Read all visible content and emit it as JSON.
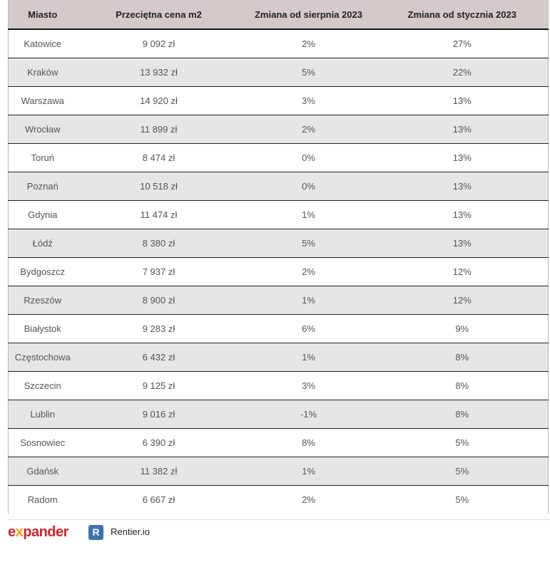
{
  "table": {
    "headers": [
      "Miasto",
      "Przeciętna cena m2",
      "Zmiana od sierpnia 2023",
      "Zmiana od stycznia 2023"
    ],
    "rows": [
      [
        "Katowice",
        "9 092 zł",
        "2%",
        "27%"
      ],
      [
        "Kraków",
        "13 932 zł",
        "5%",
        "22%"
      ],
      [
        "Warszawa",
        "14 920 zł",
        "3%",
        "13%"
      ],
      [
        "Wrocław",
        "11 899 zł",
        "2%",
        "13%"
      ],
      [
        "Toruń",
        "8 474 zł",
        "0%",
        "13%"
      ],
      [
        "Poznań",
        "10 518 zł",
        "0%",
        "13%"
      ],
      [
        "Gdynia",
        "11 474 zł",
        "1%",
        "13%"
      ],
      [
        "Łódź",
        "8 380 zł",
        "5%",
        "13%"
      ],
      [
        "Bydgoszcz",
        "7 937 zł",
        "2%",
        "12%"
      ],
      [
        "Rzeszów",
        "8 900 zł",
        "1%",
        "12%"
      ],
      [
        "Białystok",
        "9 283 zł",
        "6%",
        "9%"
      ],
      [
        "Częstochowa",
        "6 432 zł",
        "1%",
        "8%"
      ],
      [
        "Szczecin",
        "9 125 zł",
        "3%",
        "8%"
      ],
      [
        "Lublin",
        "9 016 zł",
        "-1%",
        "8%"
      ],
      [
        "Sosnowiec",
        "6 390 zł",
        "8%",
        "5%"
      ],
      [
        "Gdańsk",
        "11 382 zł",
        "1%",
        "5%"
      ],
      [
        "Radom",
        "6 667 zł",
        "2%",
        "5%"
      ]
    ]
  },
  "footer": {
    "expander_logo": "expander",
    "rentier_icon": "R",
    "rentier_label": "Rentier.io"
  },
  "colors": {
    "header_bg": "#d4caca",
    "alt_row": "#e6e6e6",
    "expander_red": "#d4232b",
    "rentier_blue": "#3f6fb5"
  }
}
